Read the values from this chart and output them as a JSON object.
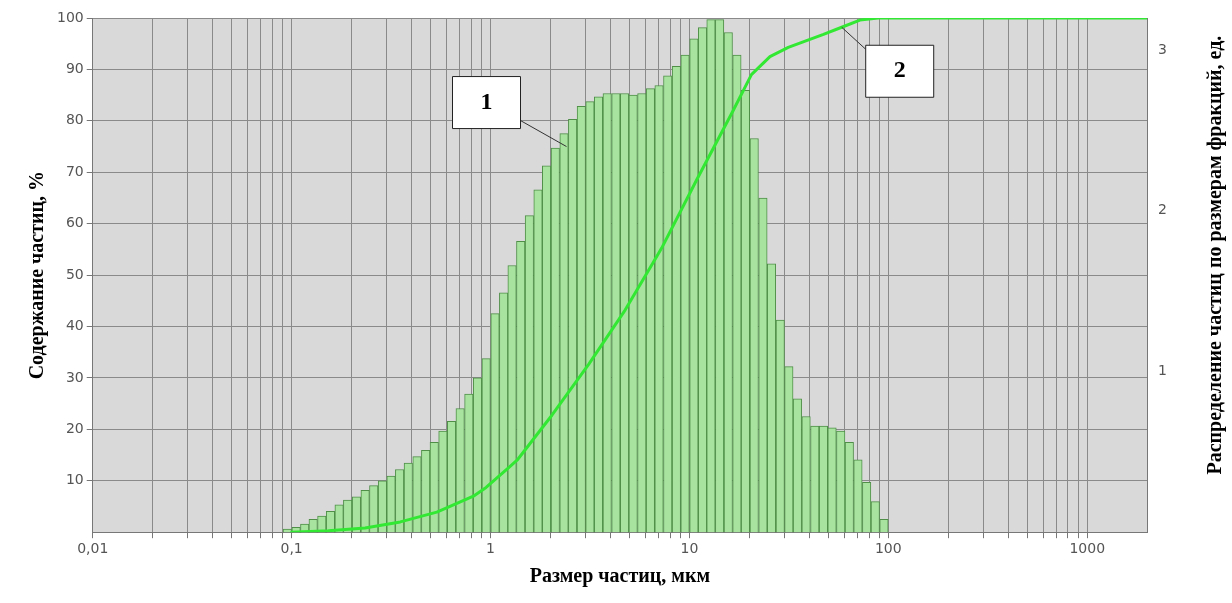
{
  "chart_data": {
    "type": "histogram",
    "xlabel": "Размер частиц, мкм",
    "ylabel": "Содержание частиц, %",
    "y2label": "Распределение частиц по размерам фракций, ед.",
    "log": "x",
    "xlim": [
      0.01,
      2000
    ],
    "xticks": [
      {
        "value": 0.01,
        "label": "0,01"
      },
      {
        "value": 0.02,
        "label": null
      },
      {
        "value": 0.03,
        "label": null
      },
      {
        "value": 0.04,
        "label": null
      },
      {
        "value": 0.05,
        "label": null
      },
      {
        "value": 0.06,
        "label": null
      },
      {
        "value": 0.07,
        "label": null
      },
      {
        "value": 0.08,
        "label": null
      },
      {
        "value": 0.09,
        "label": null
      },
      {
        "value": 0.1,
        "label": "0,1"
      },
      {
        "value": 0.2,
        "label": null
      },
      {
        "value": 0.3,
        "label": null
      },
      {
        "value": 0.4,
        "label": null
      },
      {
        "value": 0.5,
        "label": null
      },
      {
        "value": 0.6,
        "label": null
      },
      {
        "value": 0.7,
        "label": null
      },
      {
        "value": 0.8,
        "label": null
      },
      {
        "value": 0.9,
        "label": null
      },
      1,
      {
        "value": 2,
        "label": null
      },
      {
        "value": 3,
        "label": null
      },
      {
        "value": 4,
        "label": null
      },
      {
        "value": 5,
        "label": null
      },
      {
        "value": 6,
        "label": null
      },
      {
        "value": 7,
        "label": null
      },
      {
        "value": 8,
        "label": null
      },
      {
        "value": 9,
        "label": null
      },
      10,
      {
        "value": 20,
        "label": null
      },
      {
        "value": 30,
        "label": null
      },
      {
        "value": 40,
        "label": null
      },
      {
        "value": 50,
        "label": null
      },
      {
        "value": 60,
        "label": null
      },
      {
        "value": 70,
        "label": null
      },
      {
        "value": 80,
        "label": null
      },
      {
        "value": 90,
        "label": null
      },
      100,
      {
        "value": 200,
        "label": null
      },
      {
        "value": 300,
        "label": null
      },
      {
        "value": 400,
        "label": null
      },
      {
        "value": 500,
        "label": null
      },
      {
        "value": 600,
        "label": null
      },
      {
        "value": 700,
        "label": null
      },
      {
        "value": 800,
        "label": null
      },
      {
        "value": 900,
        "label": null
      },
      1000
    ],
    "ylim": [
      0,
      100
    ],
    "yticks": [
      10,
      20,
      30,
      40,
      50,
      60,
      70,
      80,
      90,
      100
    ],
    "y2lim": [
      0,
      3.2
    ],
    "y2ticks": [
      1,
      2,
      3
    ],
    "grid": true,
    "legend": false,
    "bins": [
      0.0905,
      0.1,
      0.111,
      0.122,
      0.135,
      0.149,
      0.165,
      0.182,
      0.201,
      0.223,
      0.246,
      0.272,
      0.301,
      0.332,
      0.367,
      0.406,
      0.449,
      0.496,
      0.548,
      0.606,
      0.669,
      0.74,
      0.818,
      0.904,
      1,
      1.11,
      1.22,
      1.35,
      1.49,
      1.65,
      1.82,
      2.01,
      2.23,
      2.46,
      2.72,
      3.01,
      3.32,
      3.67,
      4.06,
      4.49,
      4.96,
      5.48,
      6.06,
      6.69,
      7.4,
      8.18,
      9.04,
      10,
      11.1,
      12.2,
      13.5,
      14.9,
      16.5,
      18.2,
      20.1,
      22.3,
      24.6,
      27.2,
      30.1,
      33.2,
      36.7,
      40.6,
      44.9,
      49.6,
      54.8,
      60.6,
      66.9,
      74,
      81.8,
      90.4,
      100
    ],
    "series": [
      {
        "axis": "y2",
        "color": "#a9e3a0",
        "values": [
          0.02,
          0.03,
          0.05,
          0.08,
          0.1,
          0.13,
          0.17,
          0.2,
          0.22,
          0.26,
          0.29,
          0.32,
          0.35,
          0.39,
          0.43,
          0.47,
          0.51,
          0.56,
          0.63,
          0.69,
          0.77,
          0.86,
          0.96,
          1.08,
          1.36,
          1.49,
          1.66,
          1.81,
          1.97,
          2.13,
          2.28,
          2.39,
          2.48,
          2.57,
          2.65,
          2.68,
          2.71,
          2.73,
          2.73,
          2.73,
          2.72,
          2.73,
          2.76,
          2.78,
          2.84,
          2.9,
          2.97,
          3.07,
          3.14,
          3.19,
          3.19,
          3.11,
          2.97,
          2.75,
          2.45,
          2.08,
          1.67,
          1.32,
          1.03,
          0.83,
          0.72,
          0.66,
          0.66,
          0.65,
          0.63,
          0.56,
          0.45,
          0.31,
          0.19,
          0.08
        ]
      },
      {
        "type": "line",
        "color": "#33e833",
        "marker": "none",
        "line_style": "solid",
        "x": [
          0.1,
          0.153,
          0.234,
          0.352,
          0.537,
          0.82,
          0.95,
          1.36,
          2.04,
          3.12,
          4.75,
          7.24,
          10.9,
          16.6,
          20.5,
          25.4,
          31.4,
          47.2,
          58.3,
          72,
          89,
          2000
        ],
        "values": [
          0,
          0.3,
          0.8,
          2,
          3.9,
          7,
          8.7,
          14,
          22.8,
          32.7,
          43.2,
          55.2,
          68.6,
          82,
          89,
          92.5,
          94.3,
          96.8,
          98.2,
          99.6,
          100,
          100
        ]
      }
    ],
    "annotations": [
      {
        "text": "1",
        "x": 2.41,
        "y": 75
      },
      {
        "text": "2",
        "x": 58.3,
        "y": 98.2
      }
    ]
  }
}
